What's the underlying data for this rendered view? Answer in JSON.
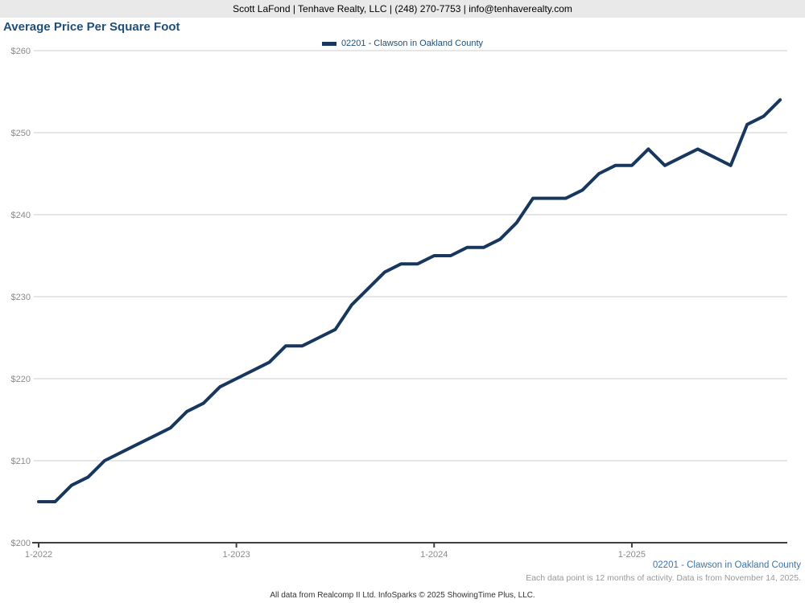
{
  "header": {
    "contact": "Scott LaFond | Tenhave Realty, LLC | (248) 270-7753 | info@tenhaverealty.com"
  },
  "title": "Average Price Per Square Foot",
  "legend": {
    "label": "02201 - Clawson in Oakland County",
    "swatch_color": "#17375e"
  },
  "chart_data": {
    "type": "line",
    "title": "Average Price Per Square Foot",
    "xlabel": "",
    "ylabel": "",
    "ylim": [
      200,
      260
    ],
    "yticks": [
      200,
      210,
      220,
      230,
      240,
      250,
      260
    ],
    "ytick_prefix": "$",
    "xticks": [
      "1-2022",
      "1-2023",
      "1-2024",
      "1-2025"
    ],
    "grid": "horizontal",
    "legend_position": "top-center",
    "x": [
      "1-2022",
      "2-2022",
      "3-2022",
      "4-2022",
      "5-2022",
      "6-2022",
      "7-2022",
      "8-2022",
      "9-2022",
      "10-2022",
      "11-2022",
      "12-2022",
      "1-2023",
      "2-2023",
      "3-2023",
      "4-2023",
      "5-2023",
      "6-2023",
      "7-2023",
      "8-2023",
      "9-2023",
      "10-2023",
      "11-2023",
      "12-2023",
      "1-2024",
      "2-2024",
      "3-2024",
      "4-2024",
      "5-2024",
      "6-2024",
      "7-2024",
      "8-2024",
      "9-2024",
      "10-2024",
      "11-2024",
      "12-2024",
      "1-2025",
      "2-2025",
      "3-2025",
      "4-2025",
      "5-2025",
      "6-2025",
      "7-2025",
      "8-2025",
      "9-2025",
      "10-2025"
    ],
    "series": [
      {
        "name": "02201 - Clawson in Oakland County",
        "color": "#17375e",
        "values": [
          205,
          205,
          207,
          208,
          210,
          211,
          212,
          213,
          214,
          216,
          217,
          219,
          220,
          221,
          222,
          224,
          224,
          225,
          226,
          229,
          231,
          233,
          234,
          234,
          235,
          235,
          236,
          236,
          237,
          239,
          242,
          242,
          242,
          243,
          245,
          246,
          246,
          248,
          246,
          247,
          248,
          247,
          246,
          251,
          252,
          254
        ]
      }
    ]
  },
  "footer": {
    "series_label": "02201 - Clawson in Oakland County",
    "note": "Each data point is 12 months of activity. Data is from November 14, 2025.",
    "attribution": "All data from Realcomp II Ltd. InfoSparks © 2025 ShowingTime Plus, LLC."
  },
  "colors": {
    "topbar_bg": "#e9e9e9",
    "title_text": "#1f4e79",
    "line": "#17375e",
    "gridline": "#cccccc",
    "axis": "#404040",
    "tick_label": "#8a8a8a",
    "footer_link": "#3c74ad",
    "footer_note": "#999999"
  }
}
